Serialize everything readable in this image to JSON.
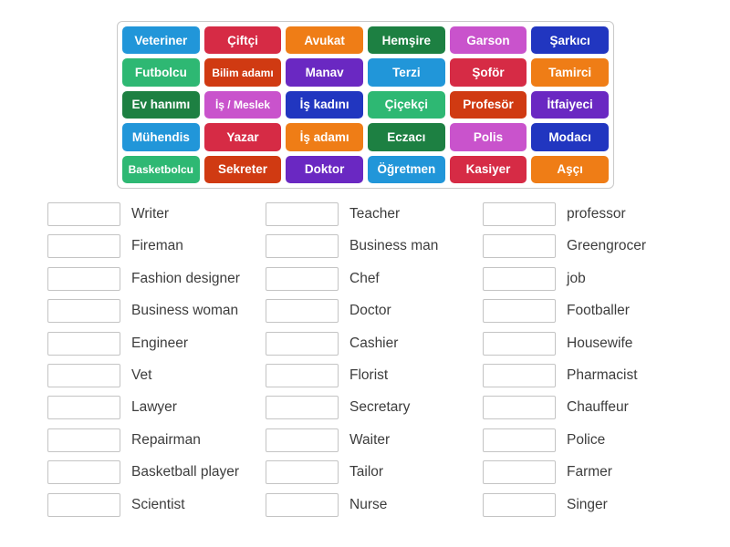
{
  "palette": {
    "blue": "#2196d9",
    "crimson": "#d62b45",
    "orange": "#ef7d16",
    "green": "#1d8042",
    "orchid": "#c953cc",
    "navy": "#2136c0",
    "emerald": "#2eb873",
    "rust": "#d03a12",
    "purple": "#6a28c2"
  },
  "tile_grid": {
    "rows": [
      [
        {
          "label": "Veteriner",
          "color": "blue"
        },
        {
          "label": "Çiftçi",
          "color": "crimson"
        },
        {
          "label": "Avukat",
          "color": "orange"
        },
        {
          "label": "Hemşire",
          "color": "green"
        },
        {
          "label": "Garson",
          "color": "orchid"
        },
        {
          "label": "Şarkıcı",
          "color": "navy"
        }
      ],
      [
        {
          "label": "Futbolcu",
          "color": "emerald"
        },
        {
          "label": "Bilim adamı",
          "color": "rust"
        },
        {
          "label": "Manav",
          "color": "purple"
        },
        {
          "label": "Terzi",
          "color": "blue"
        },
        {
          "label": "Şoför",
          "color": "crimson"
        },
        {
          "label": "Tamirci",
          "color": "orange"
        }
      ],
      [
        {
          "label": "Ev hanımı",
          "color": "green"
        },
        {
          "label": "İş / Meslek",
          "color": "orchid"
        },
        {
          "label": "İş kadını",
          "color": "navy"
        },
        {
          "label": "Çiçekçi",
          "color": "emerald"
        },
        {
          "label": "Profesör",
          "color": "rust"
        },
        {
          "label": "İtfaiyeci",
          "color": "purple"
        }
      ],
      [
        {
          "label": "Mühendis",
          "color": "blue"
        },
        {
          "label": "Yazar",
          "color": "crimson"
        },
        {
          "label": "İş adamı",
          "color": "orange"
        },
        {
          "label": "Eczacı",
          "color": "green"
        },
        {
          "label": "Polis",
          "color": "orchid"
        },
        {
          "label": "Modacı",
          "color": "navy"
        }
      ],
      [
        {
          "label": "Basketbolcu",
          "color": "emerald"
        },
        {
          "label": "Sekreter",
          "color": "rust"
        },
        {
          "label": "Doktor",
          "color": "purple"
        },
        {
          "label": "Öğretmen",
          "color": "blue"
        },
        {
          "label": "Kasiyer",
          "color": "crimson"
        },
        {
          "label": "Aşçı",
          "color": "orange"
        }
      ]
    ]
  },
  "answer_columns": [
    {
      "items": [
        "Writer",
        "Fireman",
        "Fashion designer",
        "Business woman",
        "Engineer",
        "Vet",
        "Lawyer",
        "Repairman",
        "Basketball player",
        "Scientist"
      ]
    },
    {
      "items": [
        "Teacher",
        "Business man",
        "Chef",
        "Doctor",
        "Cashier",
        "Florist",
        "Secretary",
        "Waiter",
        "Tailor",
        "Nurse"
      ]
    },
    {
      "items": [
        "professor",
        "Greengrocer",
        "job",
        "Footballer",
        "Housewife",
        "Pharmacist",
        "Chauffeur",
        "Police",
        "Farmer",
        "Singer"
      ]
    }
  ]
}
